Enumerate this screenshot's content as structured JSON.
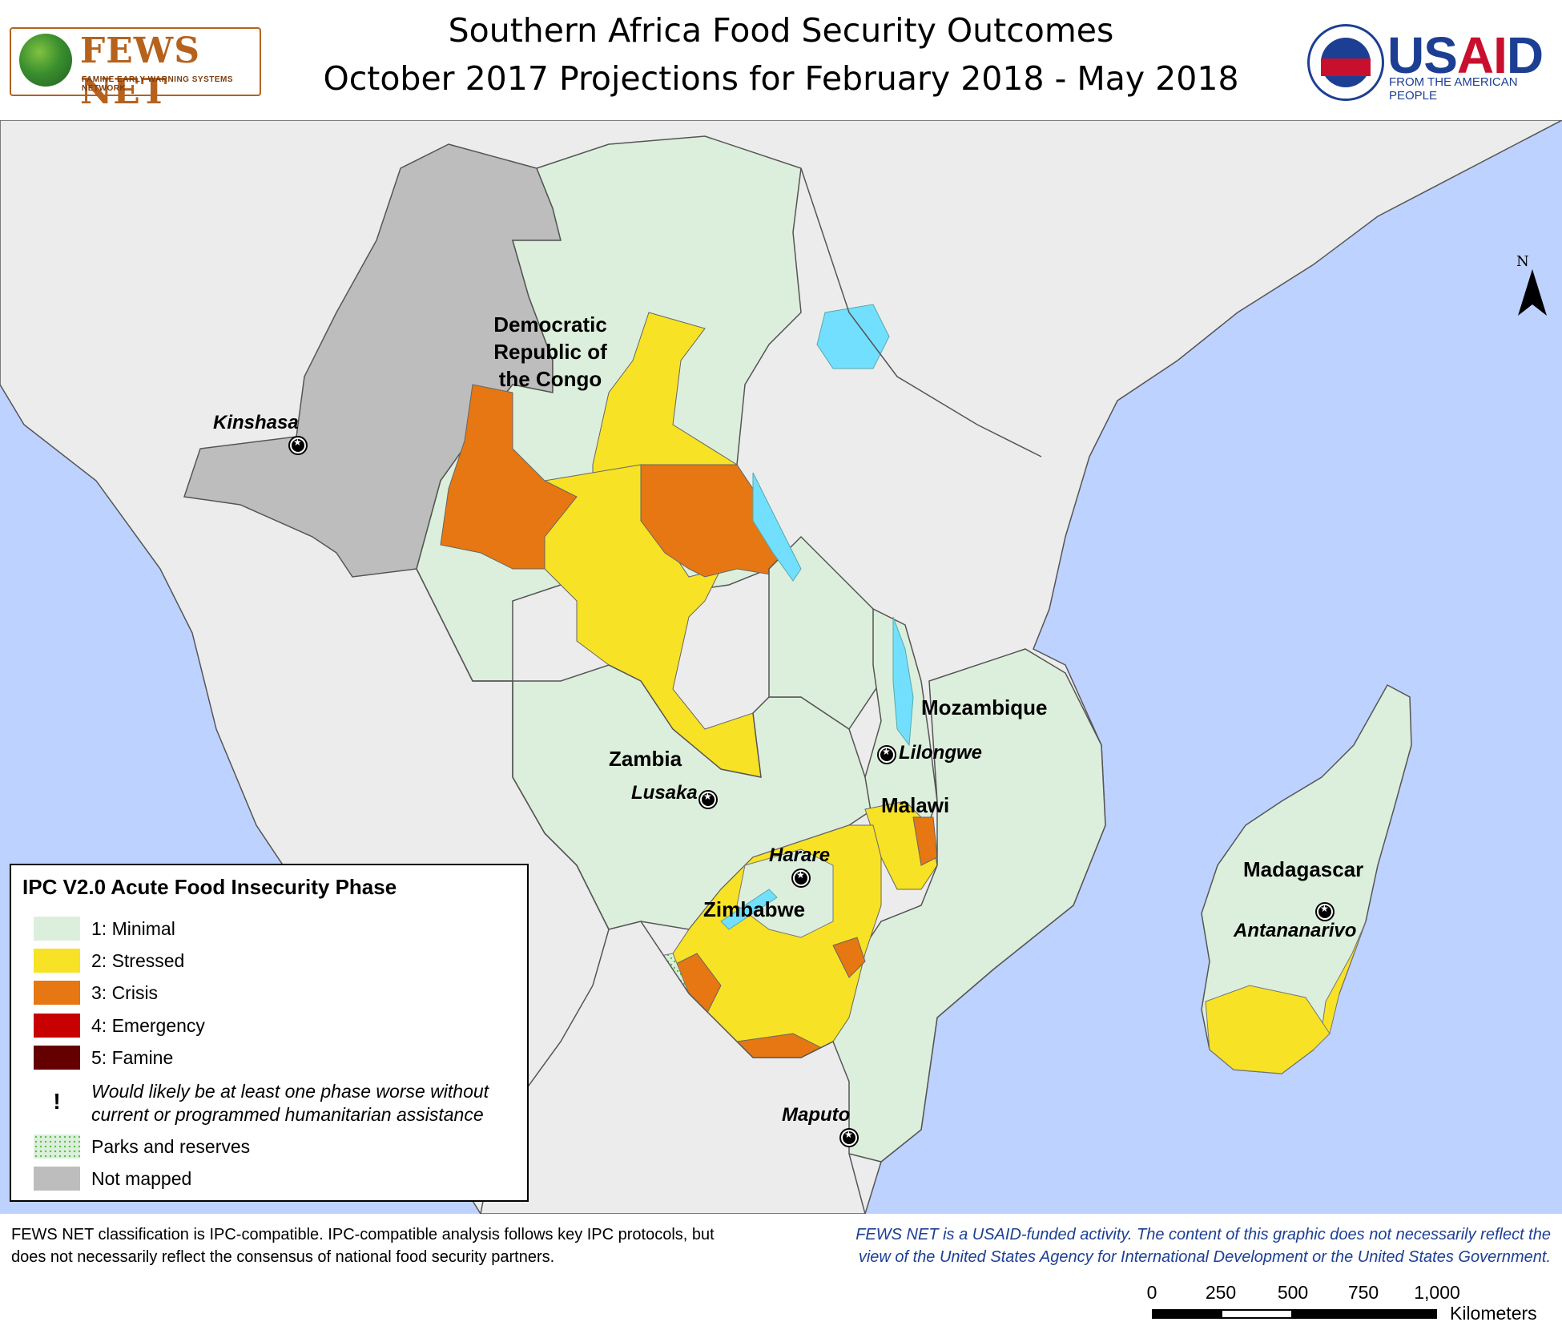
{
  "header": {
    "title_line1": "Southern Africa Food Security Outcomes",
    "title_line2": "October 2017 Projections for February 2018 - May 2018",
    "left_logo": {
      "name": "FEWS NET",
      "subtitle": "FAMINE EARLY WARNING SYSTEMS NETWORK"
    },
    "right_logo": {
      "name": "USAID",
      "subtitle": "FROM THE AMERICAN PEOPLE"
    }
  },
  "map": {
    "north_arrow": "N",
    "countries": [
      {
        "id": "drc",
        "label": "Democratic Republic of the Congo",
        "lines": [
          "Democratic",
          "Republic of",
          "the Congo"
        ]
      },
      {
        "id": "mozambique",
        "label": "Mozambique"
      },
      {
        "id": "zambia",
        "label": "Zambia"
      },
      {
        "id": "malawi",
        "label": "Malawi"
      },
      {
        "id": "zimbabwe",
        "label": "Zimbabwe"
      },
      {
        "id": "madagascar",
        "label": "Madagascar"
      }
    ],
    "capitals": [
      "Kinshasa",
      "Lilongwe",
      "Lusaka",
      "Harare",
      "Antananarivo",
      "Maputo"
    ]
  },
  "legend": {
    "title": "IPC V2.0 Acute Food Insecurity Phase",
    "items": [
      {
        "label": "1: Minimal",
        "color": "#dcefdc"
      },
      {
        "label": "2: Stressed",
        "color": "#f8e225"
      },
      {
        "label": "3: Crisis",
        "color": "#e67712"
      },
      {
        "label": "4: Emergency",
        "color": "#c80000"
      },
      {
        "label": "5: Famine",
        "color": "#640000"
      },
      {
        "label": "Would likely be at least one phase worse without current or programmed humanitarian assistance",
        "symbol": "!"
      },
      {
        "label": "Parks and reserves",
        "color": "#bfe6b4"
      },
      {
        "label": "Not mapped",
        "color": "#bdbdbd"
      }
    ]
  },
  "scale_bar": {
    "ticks": [
      "0",
      "250",
      "500",
      "750",
      "1,000"
    ],
    "units": "Kilometers"
  },
  "colors": {
    "ocean": "#bed2ff",
    "land": "#ececec",
    "lakes": "#73dfff",
    "minimal": "#dcefdc",
    "stressed": "#f8e225",
    "crisis": "#e67712",
    "not_mapped": "#bdbdbd"
  },
  "footer": {
    "left": "FEWS NET classification is IPC-compatible. IPC-compatible analysis follows key IPC protocols, but does not necessarily reflect the consensus of national food security partners.",
    "right": "FEWS NET is a USAID-funded activity. The content of this graphic does not necessarily reflect the view of the United States Agency for International Development or the United States Government."
  }
}
